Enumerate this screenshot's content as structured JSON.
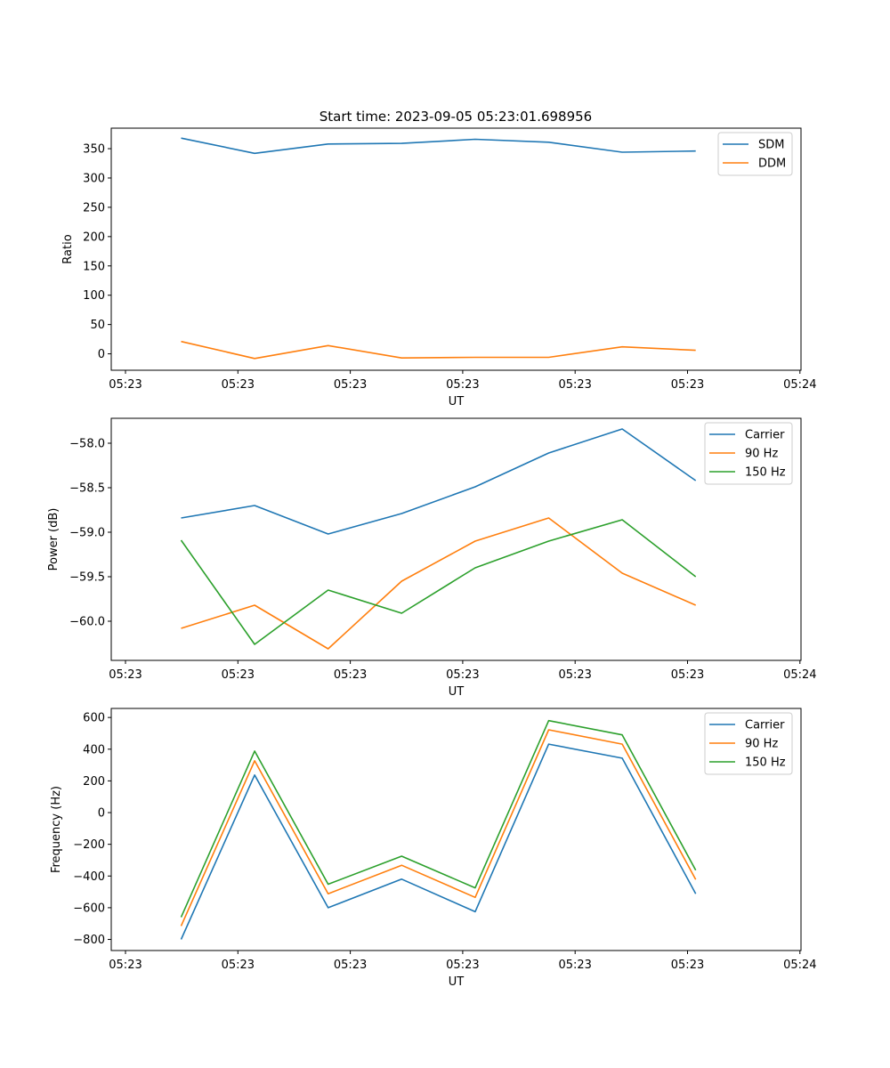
{
  "figure": {
    "title": "Start time: 2023-09-05 05:23:01.698956"
  },
  "chart_data": [
    {
      "type": "line",
      "title": "Start time: 2023-09-05 05:23:01.698956",
      "xlabel": "UT",
      "ylabel": "Ratio",
      "x_index": [
        0,
        1,
        2,
        3,
        4,
        5,
        6,
        7
      ],
      "xtick_labels": [
        "05:23",
        "05:23",
        "05:23",
        "05:23",
        "05:23",
        "05:23",
        "05:24"
      ],
      "ytick_values": [
        0,
        50,
        100,
        150,
        200,
        250,
        300,
        350
      ],
      "ytick_labels": [
        "0",
        "50",
        "100",
        "150",
        "200",
        "250",
        "300",
        "350"
      ],
      "ylim": [
        -28,
        385
      ],
      "grid": false,
      "legend": "top-right",
      "series": [
        {
          "name": "SDM",
          "color": "#1f77b4",
          "values": [
            368,
            342,
            358,
            359,
            366,
            361,
            344,
            346
          ]
        },
        {
          "name": "DDM",
          "color": "#ff7f0e",
          "values": [
            21,
            -8,
            14,
            -7,
            -6,
            -6,
            12,
            6
          ]
        }
      ]
    },
    {
      "type": "line",
      "title": "",
      "xlabel": "UT",
      "ylabel": "Power (dB)",
      "x_index": [
        0,
        1,
        2,
        3,
        4,
        5,
        6,
        7
      ],
      "xtick_labels": [
        "05:23",
        "05:23",
        "05:23",
        "05:23",
        "05:23",
        "05:23",
        "05:24"
      ],
      "ytick_values": [
        -60.0,
        -59.5,
        -59.0,
        -58.5,
        -58.0
      ],
      "ytick_labels": [
        "−60.0",
        "−59.5",
        "−59.0",
        "−58.5",
        "−58.0"
      ],
      "ylim": [
        -60.44,
        -57.72
      ],
      "grid": false,
      "legend": "top-right",
      "series": [
        {
          "name": "Carrier",
          "color": "#1f77b4",
          "values": [
            -58.84,
            -58.7,
            -59.02,
            -58.79,
            -58.49,
            -58.11,
            -57.84,
            -58.42
          ]
        },
        {
          "name": "90 Hz",
          "color": "#ff7f0e",
          "values": [
            -60.08,
            -59.82,
            -60.31,
            -59.55,
            -59.1,
            -58.84,
            -59.46,
            -59.82
          ]
        },
        {
          "name": "150 Hz",
          "color": "#2ca02c",
          "values": [
            -59.09,
            -60.26,
            -59.65,
            -59.91,
            -59.4,
            -59.1,
            -58.86,
            -59.5
          ]
        }
      ]
    },
    {
      "type": "line",
      "title": "",
      "xlabel": "UT",
      "ylabel": "Frequency (Hz)",
      "x_index": [
        0,
        1,
        2,
        3,
        4,
        5,
        6,
        7
      ],
      "xtick_labels": [
        "05:23",
        "05:23",
        "05:23",
        "05:23",
        "05:23",
        "05:23",
        "05:24"
      ],
      "ytick_values": [
        -800,
        -600,
        -400,
        -200,
        0,
        200,
        400,
        600
      ],
      "ytick_labels": [
        "−800",
        "−600",
        "−400",
        "−200",
        "0",
        "200",
        "400",
        "600"
      ],
      "ylim": [
        -870,
        657
      ],
      "grid": false,
      "legend": "top-right",
      "series": [
        {
          "name": "Carrier",
          "color": "#1f77b4",
          "values": [
            -800,
            237,
            -600,
            -420,
            -625,
            432,
            343,
            -512
          ]
        },
        {
          "name": "90 Hz",
          "color": "#ff7f0e",
          "values": [
            -715,
            327,
            -512,
            -332,
            -535,
            522,
            432,
            -422
          ]
        },
        {
          "name": "150 Hz",
          "color": "#2ca02c",
          "values": [
            -660,
            388,
            -452,
            -275,
            -475,
            580,
            490,
            -363
          ]
        }
      ]
    }
  ]
}
